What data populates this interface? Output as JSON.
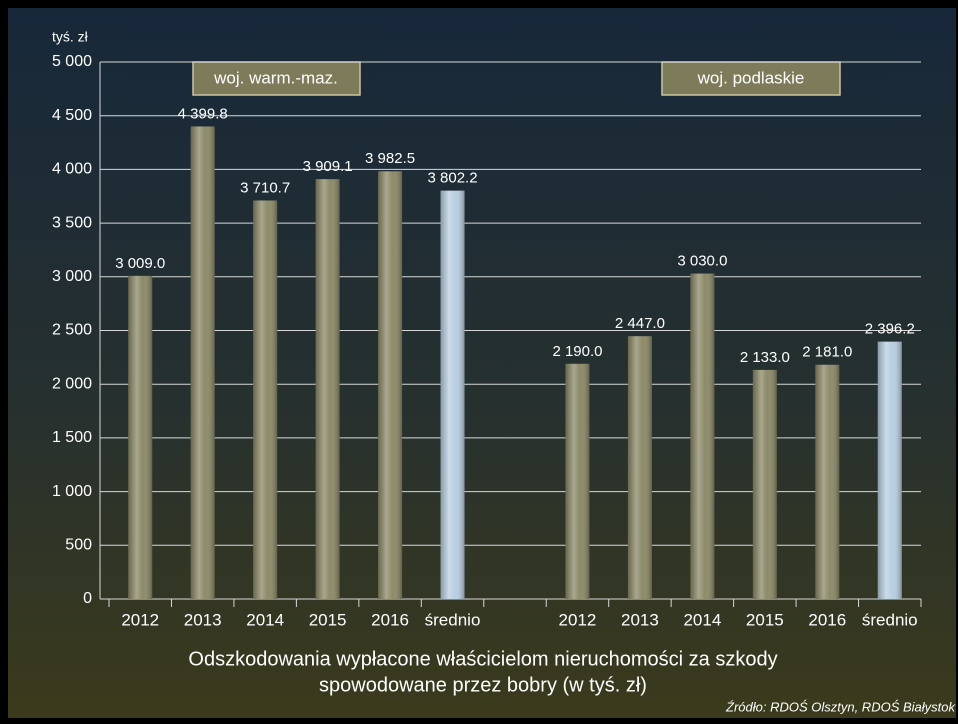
{
  "chart_data": {
    "type": "bar",
    "title": [
      "Odszkodowania wypłacone właścicielom nieruchomości za szkody",
      "spowodowane przez bobry (w tyś. zł)"
    ],
    "y_axis_label": "tyś. zł",
    "annotations": [
      "woj. warm.-maz.",
      "woj. podlaskie"
    ],
    "source": "Źródło: RDOŚ Olsztyn, RDOŚ Białystok",
    "categories": [
      "2012",
      "2013",
      "2014",
      "2015",
      "2016",
      "średnio",
      null,
      "2012",
      "2013",
      "2014",
      "2015",
      "2016",
      "średnio"
    ],
    "values": [
      3009.0,
      4399.8,
      3710.7,
      3909.1,
      3982.5,
      3802.2,
      null,
      2190.0,
      2447.0,
      3030.0,
      2133.0,
      2181.0,
      2396.2
    ],
    "value_labels": [
      "3 009.0",
      "4 399.8",
      "3 710.7",
      "3 909.1",
      "3 982.5",
      "3 802.2",
      null,
      "2 190.0",
      "2 447.0",
      "3 030.0",
      "2 133.0",
      "2 181.0",
      "2 396.2"
    ],
    "colors": [
      "#8c8a68",
      "#8c8a68",
      "#8c8a68",
      "#8c8a68",
      "#8c8a68",
      "#b9d0e2",
      null,
      "#8c8a68",
      "#8c8a68",
      "#8c8a68",
      "#8c8a68",
      "#8c8a68",
      "#b9d0e2"
    ],
    "ylim": [
      0,
      5000
    ],
    "yticks": [
      0,
      500,
      {
        "value": 1000,
        "label": "1 000"
      },
      {
        "value": 1500,
        "label": "1 500"
      },
      {
        "value": 2000,
        "label": "2 000"
      },
      {
        "value": 2500,
        "label": "2 500"
      },
      {
        "value": 3000,
        "label": "3 000"
      },
      {
        "value": 3500,
        "label": "3 500"
      },
      {
        "value": 4000,
        "label": "4 000"
      },
      {
        "value": 4500,
        "label": "4 500"
      },
      {
        "value": 5000,
        "label": "5 000"
      }
    ],
    "grid": true
  }
}
